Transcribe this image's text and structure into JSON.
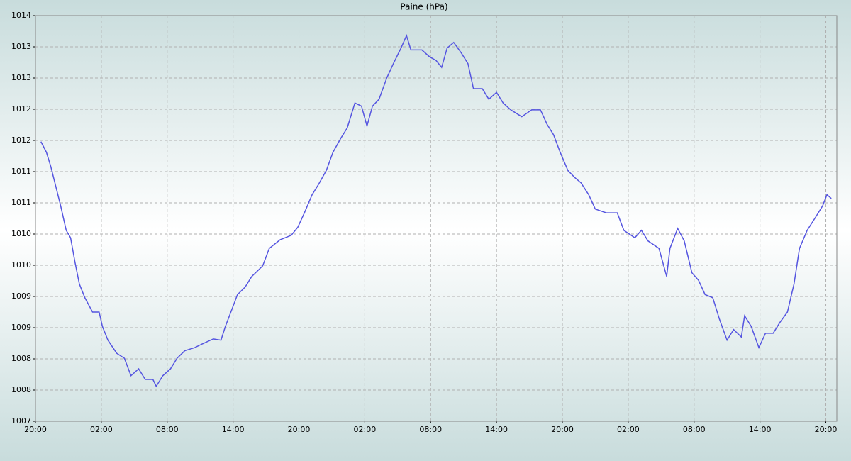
{
  "chart_data": {
    "type": "line",
    "title": "Paine (hPa)",
    "x": [
      0.5,
      1,
      1.4,
      1.8,
      2.3,
      2.8,
      3.2,
      3.6,
      4,
      4.5,
      5.2,
      5.8,
      6.1,
      6.6,
      7.4,
      8.1,
      8.7,
      9.4,
      10,
      10.7,
      11,
      11.6,
      12.3,
      12.9,
      13.6,
      14.5,
      15.2,
      16.2,
      16.9,
      17.3,
      17.8,
      18.4,
      19.1,
      19.7,
      20.7,
      21.3,
      22.3,
      23.3,
      23.9,
      24.5,
      25.2,
      25.8,
      26.5,
      27.1,
      27.8,
      28.4,
      29.1,
      29.7,
      30.2,
      30.7,
      31.3,
      32,
      32.6,
      33.3,
      33.8,
      34.2,
      35.2,
      35.9,
      36.5,
      37,
      37.5,
      38.1,
      38.8,
      39.4,
      39.9,
      40.7,
      41.3,
      42,
      42.6,
      43.3,
      44.3,
      45.2,
      46,
      46.6,
      47.2,
      47.8,
      48.5,
      49.1,
      49.7,
      50.4,
      51,
      52,
      53,
      53.6,
      54.6,
      55.2,
      55.8,
      56.8,
      57.5,
      57.8,
      58.5,
      59.1,
      59.8,
      60.4,
      61,
      61.7,
      62.3,
      63,
      63.6,
      64.3,
      64.6,
      65.2,
      65.9,
      66.5,
      67.2,
      67.8,
      68.5,
      69.1,
      69.6,
      70.3,
      71.1,
      71.7,
      72.1,
      72.5
    ],
    "series": [
      {
        "name": "Paine",
        "color": "#5555e0",
        "values": [
          1011.48,
          1011.31,
          1011.08,
          1010.8,
          1010.45,
          1010.06,
          1009.94,
          1009.55,
          1009.2,
          1008.98,
          1008.75,
          1008.75,
          1008.52,
          1008.3,
          1008.09,
          1008.01,
          1007.73,
          1007.84,
          1007.67,
          1007.67,
          1007.56,
          1007.73,
          1007.84,
          1008.01,
          1008.13,
          1008.18,
          1008.24,
          1008.32,
          1008.3,
          1008.52,
          1008.75,
          1009.03,
          1009.15,
          1009.32,
          1009.49,
          1009.77,
          1009.91,
          1009.98,
          1010.11,
          1010.34,
          1010.63,
          1010.8,
          1011.02,
          1011.31,
          1011.53,
          1011.7,
          1012.1,
          1012.05,
          1011.73,
          1012.05,
          1012.16,
          1012.5,
          1012.73,
          1012.98,
          1013.18,
          1012.95,
          1012.95,
          1012.84,
          1012.78,
          1012.67,
          1012.98,
          1013.07,
          1012.9,
          1012.73,
          1012.33,
          1012.33,
          1012.16,
          1012.27,
          1012.1,
          1011.99,
          1011.88,
          1011.99,
          1011.99,
          1011.76,
          1011.59,
          1011.31,
          1011.02,
          1010.91,
          1010.82,
          1010.63,
          1010.4,
          1010.34,
          1010.34,
          1010.06,
          1009.94,
          1010.06,
          1009.89,
          1009.77,
          1009.32,
          1009.77,
          1010.09,
          1009.89,
          1009.38,
          1009.26,
          1009.03,
          1008.98,
          1008.64,
          1008.3,
          1008.47,
          1008.35,
          1008.69,
          1008.52,
          1008.18,
          1008.41,
          1008.41,
          1008.58,
          1008.75,
          1009.2,
          1009.77,
          1010.06,
          1010.28,
          1010.45,
          1010.63,
          1010.57
        ]
      }
    ],
    "xlim": [
      0,
      73
    ],
    "xticks": [
      {
        "value": 0,
        "label": "20:00"
      },
      {
        "value": 6,
        "label": "02:00"
      },
      {
        "value": 12,
        "label": "08:00"
      },
      {
        "value": 18,
        "label": "14:00"
      },
      {
        "value": 24,
        "label": "20:00"
      },
      {
        "value": 30,
        "label": "02:00"
      },
      {
        "value": 36,
        "label": "08:00"
      },
      {
        "value": 42,
        "label": "14:00"
      },
      {
        "value": 48,
        "label": "20:00"
      },
      {
        "value": 54,
        "label": "02:00"
      },
      {
        "value": 60,
        "label": "08:00"
      },
      {
        "value": 66,
        "label": "14:00"
      },
      {
        "value": 72,
        "label": "20:00"
      }
    ],
    "ylim": [
      1007,
      1013.5
    ],
    "yticks": [
      1007,
      {
        "value": 1007.5,
        "label": "1008"
      },
      1008,
      {
        "value": 1008.5,
        "label": "1009"
      },
      1009,
      {
        "value": 1009.5,
        "label": "1010"
      },
      1010,
      {
        "value": 1010.5,
        "label": "1011"
      },
      1011,
      {
        "value": 1011.5,
        "label": "1012"
      },
      1012,
      {
        "value": 1012.5,
        "label": "1013"
      },
      1013,
      {
        "value": 1013.5,
        "label": "1014"
      }
    ],
    "grid": true
  }
}
